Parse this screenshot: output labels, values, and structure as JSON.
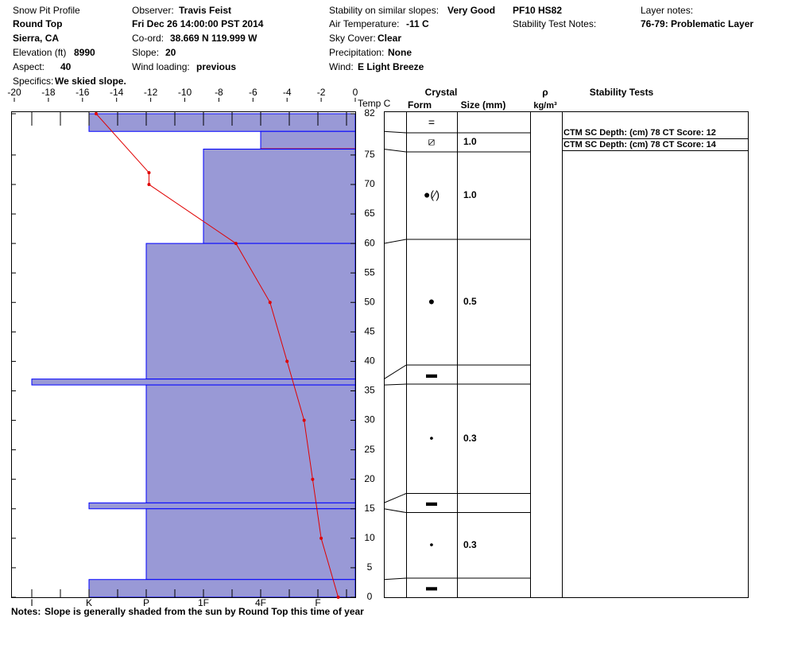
{
  "header": {
    "title": "Snow Pit Profile",
    "location": "Round Top",
    "region": "Sierra, CA",
    "elevation_label": "Elevation (ft)",
    "elevation": "8990",
    "aspect_label": "Aspect:",
    "aspect": "40",
    "specifics_label": "Specifics:",
    "specifics": "We skied slope.",
    "observer_label": "Observer:",
    "observer": "Travis Feist",
    "date": "Fri Dec 26 14:00:00 PST 2014",
    "coord_label": "Co-ord:",
    "coord": "38.669 N 119.999 W",
    "slope_label": "Slope:",
    "slope": "20",
    "wind_loading_label": "Wind loading:",
    "wind_loading": "previous",
    "stability_label": "Stability on similar slopes:",
    "stability": "Very Good",
    "air_temp_label": "Air Temperature:",
    "air_temp": "-11 C",
    "sky_label": "Sky Cover:",
    "sky": "Clear",
    "precip_label": "Precipitation:",
    "precip": "None",
    "wind_label": "Wind:",
    "wind": "E Light Breeze",
    "pf": "PF10 HS82",
    "test_notes_label": "Stability Test Notes:",
    "layer_notes_label": "Layer notes:",
    "layer_notes": "76-79: Problematic Layer"
  },
  "chart_data": {
    "type": "snowpit",
    "xlabel": "Temp C",
    "xlim": [
      -20,
      0
    ],
    "xticks": [
      -20,
      -18,
      -16,
      -14,
      -12,
      -10,
      -8,
      -6,
      -4,
      -2,
      0
    ],
    "ylim": [
      0,
      82
    ],
    "yticks": [
      0,
      5,
      10,
      15,
      20,
      25,
      30,
      35,
      40,
      45,
      50,
      55,
      60,
      65,
      70,
      75,
      82
    ],
    "hardness_ticks": [
      "I",
      null,
      "K",
      null,
      "P",
      null,
      "1F",
      null,
      "4F",
      null,
      "F",
      null
    ],
    "layer_color": "#9999d6",
    "layer_edge_color": "#0000ff",
    "problem_color": "#e00000",
    "temperature": {
      "color": "#e00000",
      "height": [
        82,
        72,
        70,
        60,
        50,
        40,
        30,
        20,
        10,
        0
      ],
      "temp": [
        -15.2,
        -12.1,
        -12.1,
        -7,
        -5,
        -4,
        -3,
        -2.5,
        -2,
        -1
      ]
    },
    "layers": [
      {
        "top": 82,
        "bottom": 79,
        "hardness": "K",
        "form": "=",
        "size": null
      },
      {
        "top": 79,
        "bottom": 76,
        "hardness": "4F",
        "form": "⧄",
        "size": "1.0",
        "problematic": true
      },
      {
        "top": 76,
        "bottom": 60,
        "hardness": "1F",
        "form": "●(⁄)",
        "size": "1.0"
      },
      {
        "top": 60,
        "bottom": 37,
        "hardness": "P",
        "form": "●",
        "size": "0.5"
      },
      {
        "top": 37,
        "bottom": 36,
        "hardness": "I",
        "form": "▬",
        "size": null
      },
      {
        "top": 36,
        "bottom": 16,
        "hardness": "P",
        "form": "•",
        "size": "0.3"
      },
      {
        "top": 16,
        "bottom": 15,
        "hardness": "K",
        "form": "▬",
        "size": null
      },
      {
        "top": 15,
        "bottom": 3,
        "hardness": "P",
        "form": "•",
        "size": "0.3"
      },
      {
        "top": 3,
        "bottom": 0,
        "hardness": "K",
        "form": "▬",
        "size": null
      }
    ],
    "crystal_label": "Crystal",
    "form_label": "Form",
    "size_label": "Size (mm)",
    "density_label": "ρ",
    "density_unit": "kg/m³",
    "stability_tests_label": "Stability Tests",
    "stability_tests": [
      "CTM SC Depth: (cm) 78 CT Score: 12",
      "CTM SC Depth: (cm) 78 CT Score: 14"
    ],
    "notes_label": "Notes:",
    "notes": "Slope is generally shaded from the sun by Round Top this time of year"
  }
}
